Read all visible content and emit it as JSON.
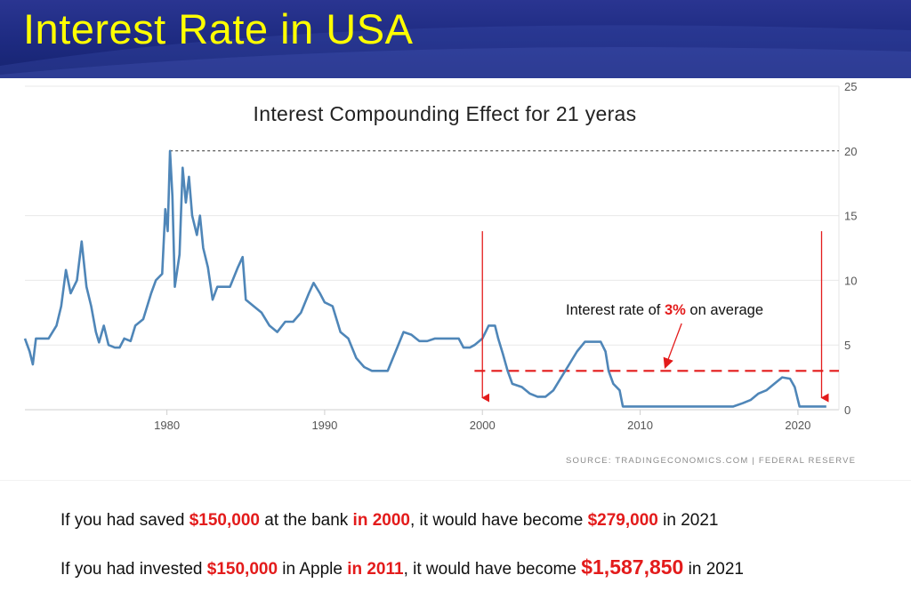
{
  "header": {
    "title": "Interest Rate in USA"
  },
  "chart_data": {
    "type": "line",
    "title": "Interest Compounding Effect for 21 yeras",
    "xlabel": "",
    "ylabel": "",
    "xlim": [
      1971,
      2022.6
    ],
    "ylim": [
      0,
      25
    ],
    "x_ticks": [
      1980,
      1990,
      2000,
      2010,
      2020
    ],
    "y_ticks": [
      0,
      5,
      10,
      15,
      20,
      25
    ],
    "y_axis_position": "right",
    "grid": "horizontal",
    "source": "SOURCE: TRADINGECONOMICS.COM | FEDERAL RESERVE",
    "series": [
      {
        "name": "",
        "color": "#4f86b8",
        "points": [
          [
            1971.0,
            5.5
          ],
          [
            1971.3,
            4.5
          ],
          [
            1971.5,
            3.5
          ],
          [
            1971.7,
            5.5
          ],
          [
            1972.0,
            5.5
          ],
          [
            1972.5,
            5.5
          ],
          [
            1973.0,
            6.5
          ],
          [
            1973.3,
            8.0
          ],
          [
            1973.6,
            10.8
          ],
          [
            1973.9,
            9.0
          ],
          [
            1974.3,
            10.0
          ],
          [
            1974.6,
            13.0
          ],
          [
            1974.9,
            9.5
          ],
          [
            1975.2,
            8.0
          ],
          [
            1975.5,
            6.0
          ],
          [
            1975.7,
            5.2
          ],
          [
            1976.0,
            6.5
          ],
          [
            1976.3,
            5.0
          ],
          [
            1976.7,
            4.8
          ],
          [
            1977.0,
            4.8
          ],
          [
            1977.3,
            5.5
          ],
          [
            1977.7,
            5.3
          ],
          [
            1978.0,
            6.5
          ],
          [
            1978.5,
            7.0
          ],
          [
            1979.0,
            9.0
          ],
          [
            1979.3,
            10.0
          ],
          [
            1979.7,
            10.5
          ],
          [
            1979.9,
            15.5
          ],
          [
            1980.05,
            13.8
          ],
          [
            1980.2,
            20.0
          ],
          [
            1980.35,
            16.5
          ],
          [
            1980.5,
            9.5
          ],
          [
            1980.8,
            12.0
          ],
          [
            1981.0,
            18.7
          ],
          [
            1981.2,
            16.0
          ],
          [
            1981.4,
            18.0
          ],
          [
            1981.6,
            15.0
          ],
          [
            1981.9,
            13.5
          ],
          [
            1982.1,
            15.0
          ],
          [
            1982.3,
            12.5
          ],
          [
            1982.6,
            11.0
          ],
          [
            1982.9,
            8.5
          ],
          [
            1983.2,
            9.5
          ],
          [
            1983.6,
            9.5
          ],
          [
            1984.0,
            9.5
          ],
          [
            1984.5,
            11.0
          ],
          [
            1984.8,
            11.8
          ],
          [
            1985.0,
            8.5
          ],
          [
            1985.5,
            8.0
          ],
          [
            1986.0,
            7.5
          ],
          [
            1986.5,
            6.5
          ],
          [
            1987.0,
            6.0
          ],
          [
            1987.5,
            6.8
          ],
          [
            1988.0,
            6.8
          ],
          [
            1988.5,
            7.5
          ],
          [
            1989.0,
            9.0
          ],
          [
            1989.3,
            9.8
          ],
          [
            1989.7,
            9.0
          ],
          [
            1990.0,
            8.3
          ],
          [
            1990.5,
            8.0
          ],
          [
            1991.0,
            6.0
          ],
          [
            1991.5,
            5.5
          ],
          [
            1992.0,
            4.0
          ],
          [
            1992.5,
            3.3
          ],
          [
            1993.0,
            3.0
          ],
          [
            1993.5,
            3.0
          ],
          [
            1994.0,
            3.0
          ],
          [
            1994.5,
            4.5
          ],
          [
            1995.0,
            6.0
          ],
          [
            1995.5,
            5.8
          ],
          [
            1996.0,
            5.3
          ],
          [
            1996.5,
            5.3
          ],
          [
            1997.0,
            5.5
          ],
          [
            1997.5,
            5.5
          ],
          [
            1998.0,
            5.5
          ],
          [
            1998.5,
            5.5
          ],
          [
            1998.8,
            4.8
          ],
          [
            1999.2,
            4.8
          ],
          [
            1999.5,
            5.0
          ],
          [
            2000.0,
            5.5
          ],
          [
            2000.4,
            6.5
          ],
          [
            2000.8,
            6.5
          ],
          [
            2001.0,
            5.5
          ],
          [
            2001.3,
            4.3
          ],
          [
            2001.6,
            3.0
          ],
          [
            2001.9,
            2.0
          ],
          [
            2002.5,
            1.75
          ],
          [
            2003.0,
            1.25
          ],
          [
            2003.5,
            1.0
          ],
          [
            2004.0,
            1.0
          ],
          [
            2004.5,
            1.5
          ],
          [
            2005.0,
            2.5
          ],
          [
            2005.5,
            3.5
          ],
          [
            2006.0,
            4.5
          ],
          [
            2006.5,
            5.25
          ],
          [
            2007.0,
            5.25
          ],
          [
            2007.5,
            5.25
          ],
          [
            2007.8,
            4.5
          ],
          [
            2008.0,
            3.0
          ],
          [
            2008.3,
            2.0
          ],
          [
            2008.7,
            1.5
          ],
          [
            2008.9,
            0.25
          ],
          [
            2010.0,
            0.25
          ],
          [
            2012.0,
            0.25
          ],
          [
            2014.0,
            0.25
          ],
          [
            2015.9,
            0.25
          ],
          [
            2016.5,
            0.5
          ],
          [
            2017.0,
            0.75
          ],
          [
            2017.5,
            1.25
          ],
          [
            2018.0,
            1.5
          ],
          [
            2018.5,
            2.0
          ],
          [
            2019.0,
            2.5
          ],
          [
            2019.5,
            2.4
          ],
          [
            2019.8,
            1.75
          ],
          [
            2020.1,
            0.25
          ],
          [
            2021.0,
            0.25
          ],
          [
            2021.8,
            0.25
          ]
        ]
      }
    ],
    "reference_lines": [
      {
        "label": "Interest rate of 3% on average",
        "value": 3,
        "x_from": 1999.5,
        "x_to": 2022.6,
        "style": "dashed",
        "color": "#e31b1b"
      },
      {
        "label": "",
        "value": 20,
        "x_from": 1980.2,
        "x_to": 2022.6,
        "style": "dotted",
        "color": "#333333"
      }
    ],
    "markers": [
      {
        "type": "arrow",
        "x": 2000,
        "from_y": 13.8,
        "to_y": 0.3,
        "color": "#e31b1b"
      },
      {
        "type": "arrow",
        "x": 2021.5,
        "from_y": 13.8,
        "to_y": 0.3,
        "color": "#e31b1b"
      }
    ],
    "annotation": {
      "prefix": "Interest rate of ",
      "highlight": "3%",
      "suffix": " on average",
      "arrow_to": [
        2011.5,
        3.0
      ]
    }
  },
  "notes": [
    {
      "t1": "If you had saved ",
      "h1": "$150,000",
      "t2": " at the bank ",
      "h2": "in 2000",
      "t3": ", it would have become ",
      "h3": "$279,000",
      "t4": " in 2021"
    },
    {
      "t1": "If you had invested ",
      "h1": "$150,000",
      "t2": " in Apple ",
      "h2": "in 2011",
      "t3": ", it would have become ",
      "h3": "$1,587,850",
      "t4": " in 2021"
    }
  ],
  "colors": {
    "banner": "#1d2a80",
    "title": "#ffff00",
    "highlight": "#e31b1b",
    "line": "#4f86b8"
  }
}
